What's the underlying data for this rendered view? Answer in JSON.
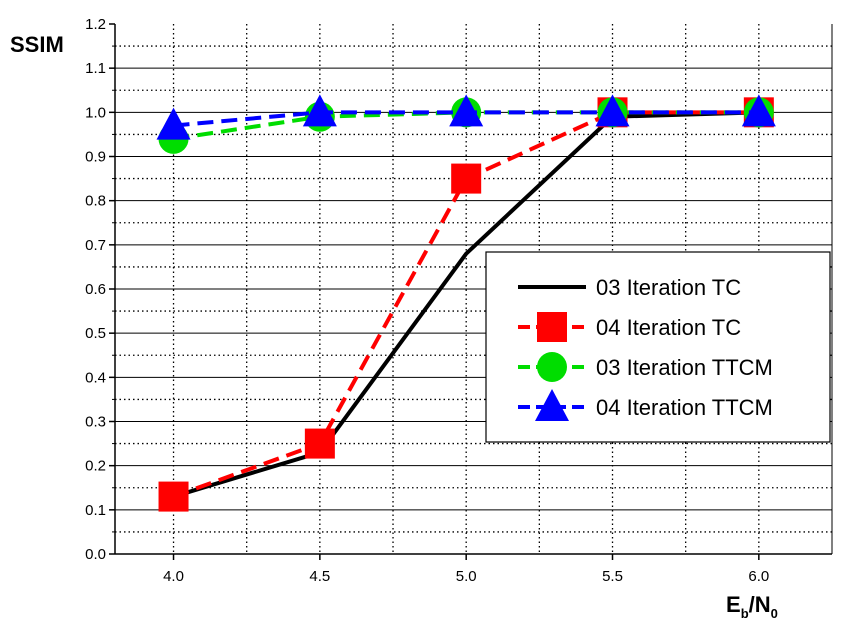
{
  "chart_data": {
    "type": "line",
    "title": "",
    "xlabel": {
      "base": "E",
      "sub1": "b",
      "slash": "/N",
      "sub2": "0"
    },
    "ylabel": "SSIM",
    "xlim": [
      3.8,
      6.25
    ],
    "ylim": [
      0.0,
      1.2
    ],
    "x_ticks": [
      "4.0",
      "4.5",
      "5.0",
      "5.5",
      "6.0"
    ],
    "x_tick_values": [
      4.0,
      4.5,
      5.0,
      5.5,
      6.0
    ],
    "x_minor_values": [
      3.75,
      4.25,
      4.75,
      5.25,
      5.75,
      6.25
    ],
    "y_ticks": [
      "0.0",
      "0.1",
      "0.2",
      "0.3",
      "0.4",
      "0.5",
      "0.6",
      "0.7",
      "0.8",
      "0.9",
      "1.0",
      "1.1",
      "1.2"
    ],
    "y_tick_values": [
      0.0,
      0.1,
      0.2,
      0.3,
      0.4,
      0.5,
      0.6,
      0.7,
      0.8,
      0.9,
      1.0,
      1.1,
      1.2
    ],
    "grid": true,
    "legend_position": "right",
    "x": [
      4.0,
      4.5,
      5.0,
      5.5,
      6.0
    ],
    "series": [
      {
        "name": "03 Iteration TC",
        "color": "#000000",
        "dash": "solid",
        "marker": "none",
        "values": [
          0.13,
          0.23,
          0.68,
          0.99,
          1.0
        ]
      },
      {
        "name": "04 Iteration TC",
        "color": "#ff0000",
        "dash": "dashed",
        "marker": "square",
        "values": [
          0.13,
          0.25,
          0.85,
          1.0,
          1.0
        ]
      },
      {
        "name": "03 Iteration TTCM",
        "color": "#00dd00",
        "dash": "dashed",
        "marker": "circle",
        "values": [
          0.94,
          0.99,
          1.0,
          1.0,
          1.0
        ]
      },
      {
        "name": "04 Iteration TTCM",
        "color": "#0000ff",
        "dash": "dashed",
        "marker": "triangle",
        "values": [
          0.97,
          1.0,
          1.0,
          1.0,
          1.0
        ]
      }
    ]
  }
}
